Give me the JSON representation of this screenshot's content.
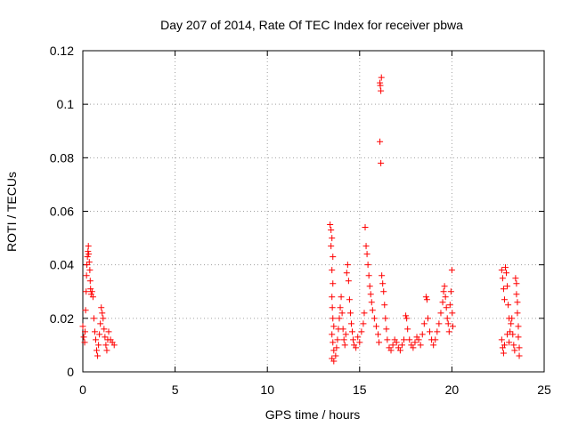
{
  "chart_data": {
    "type": "scatter",
    "title": "Day 207 of 2014, Rate Of TEC Index for receiver pbwa",
    "xlabel": "GPS time / hours",
    "ylabel": "ROTI / TECUs",
    "xlim": [
      0,
      25
    ],
    "ylim": [
      0,
      0.12
    ],
    "x_ticks": [
      0,
      5,
      10,
      15,
      20,
      25
    ],
    "x_tick_labels": [
      "0",
      "5",
      "10",
      "15",
      "20",
      "25"
    ],
    "y_ticks": [
      0,
      0.02,
      0.04,
      0.06,
      0.08,
      0.1,
      0.12
    ],
    "y_tick_labels": [
      "0",
      "0.02",
      "0.04",
      "0.06",
      "0.08",
      "0.1",
      "0.12"
    ],
    "grid": true,
    "marker": "+",
    "color": "#ff0000",
    "series": [
      {
        "name": "ROTI",
        "points": [
          [
            0.0,
            0.017
          ],
          [
            0.05,
            0.013
          ],
          [
            0.1,
            0.011
          ],
          [
            0.12,
            0.015
          ],
          [
            0.15,
            0.023
          ],
          [
            0.18,
            0.03
          ],
          [
            0.2,
            0.036
          ],
          [
            0.22,
            0.04
          ],
          [
            0.25,
            0.043
          ],
          [
            0.28,
            0.045
          ],
          [
            0.3,
            0.047
          ],
          [
            0.32,
            0.044
          ],
          [
            0.35,
            0.041
          ],
          [
            0.38,
            0.038
          ],
          [
            0.4,
            0.034
          ],
          [
            0.42,
            0.031
          ],
          [
            0.45,
            0.029
          ],
          [
            0.5,
            0.03
          ],
          [
            0.55,
            0.028
          ],
          [
            0.6,
            0.02
          ],
          [
            0.65,
            0.015
          ],
          [
            0.7,
            0.012
          ],
          [
            0.75,
            0.008
          ],
          [
            0.8,
            0.006
          ],
          [
            0.85,
            0.01
          ],
          [
            0.9,
            0.014
          ],
          [
            0.95,
            0.018
          ],
          [
            1.0,
            0.024
          ],
          [
            1.05,
            0.022
          ],
          [
            1.1,
            0.02
          ],
          [
            1.15,
            0.016
          ],
          [
            1.2,
            0.013
          ],
          [
            1.25,
            0.01
          ],
          [
            1.3,
            0.008
          ],
          [
            1.35,
            0.012
          ],
          [
            1.4,
            0.015
          ],
          [
            1.5,
            0.012
          ],
          [
            1.6,
            0.011
          ],
          [
            1.7,
            0.01
          ],
          [
            13.4,
            0.055
          ],
          [
            13.45,
            0.053
          ],
          [
            13.5,
            0.05
          ],
          [
            13.55,
            0.043
          ],
          [
            13.45,
            0.047
          ],
          [
            13.5,
            0.038
          ],
          [
            13.55,
            0.033
          ],
          [
            13.5,
            0.028
          ],
          [
            13.52,
            0.024
          ],
          [
            13.55,
            0.02
          ],
          [
            13.6,
            0.017
          ],
          [
            13.5,
            0.014
          ],
          [
            13.55,
            0.011
          ],
          [
            13.6,
            0.008
          ],
          [
            13.5,
            0.005
          ],
          [
            13.6,
            0.004
          ],
          [
            13.7,
            0.006
          ],
          [
            13.75,
            0.009
          ],
          [
            13.8,
            0.012
          ],
          [
            13.85,
            0.016
          ],
          [
            13.9,
            0.02
          ],
          [
            13.95,
            0.024
          ],
          [
            14.0,
            0.028
          ],
          [
            14.05,
            0.022
          ],
          [
            14.1,
            0.016
          ],
          [
            14.15,
            0.012
          ],
          [
            14.2,
            0.01
          ],
          [
            14.25,
            0.014
          ],
          [
            14.3,
            0.037
          ],
          [
            14.35,
            0.04
          ],
          [
            14.4,
            0.034
          ],
          [
            14.45,
            0.027
          ],
          [
            14.5,
            0.022
          ],
          [
            14.55,
            0.018
          ],
          [
            14.6,
            0.015
          ],
          [
            14.65,
            0.012
          ],
          [
            14.7,
            0.01
          ],
          [
            14.8,
            0.009
          ],
          [
            14.9,
            0.013
          ],
          [
            15.0,
            0.011
          ],
          [
            15.1,
            0.015
          ],
          [
            15.2,
            0.018
          ],
          [
            15.25,
            0.022
          ],
          [
            15.3,
            0.054
          ],
          [
            15.35,
            0.047
          ],
          [
            15.4,
            0.044
          ],
          [
            15.45,
            0.04
          ],
          [
            15.5,
            0.036
          ],
          [
            15.55,
            0.032
          ],
          [
            15.6,
            0.029
          ],
          [
            15.65,
            0.026
          ],
          [
            15.7,
            0.023
          ],
          [
            15.8,
            0.02
          ],
          [
            15.9,
            0.017
          ],
          [
            16.0,
            0.014
          ],
          [
            16.05,
            0.011
          ],
          [
            16.1,
            0.108
          ],
          [
            16.12,
            0.107
          ],
          [
            16.15,
            0.105
          ],
          [
            16.18,
            0.11
          ],
          [
            16.1,
            0.086
          ],
          [
            16.15,
            0.078
          ],
          [
            16.2,
            0.036
          ],
          [
            16.25,
            0.033
          ],
          [
            16.3,
            0.03
          ],
          [
            16.35,
            0.025
          ],
          [
            16.4,
            0.02
          ],
          [
            16.45,
            0.016
          ],
          [
            16.5,
            0.012
          ],
          [
            16.6,
            0.009
          ],
          [
            16.7,
            0.008
          ],
          [
            16.8,
            0.01
          ],
          [
            16.9,
            0.012
          ],
          [
            17.0,
            0.011
          ],
          [
            17.1,
            0.009
          ],
          [
            17.2,
            0.008
          ],
          [
            17.3,
            0.01
          ],
          [
            17.4,
            0.012
          ],
          [
            17.5,
            0.021
          ],
          [
            17.55,
            0.02
          ],
          [
            17.6,
            0.016
          ],
          [
            17.7,
            0.012
          ],
          [
            17.8,
            0.01
          ],
          [
            17.9,
            0.009
          ],
          [
            18.0,
            0.011
          ],
          [
            18.1,
            0.013
          ],
          [
            18.2,
            0.012
          ],
          [
            18.3,
            0.01
          ],
          [
            18.4,
            0.014
          ],
          [
            18.5,
            0.018
          ],
          [
            18.6,
            0.028
          ],
          [
            18.65,
            0.027
          ],
          [
            18.7,
            0.02
          ],
          [
            18.8,
            0.015
          ],
          [
            18.9,
            0.012
          ],
          [
            19.0,
            0.01
          ],
          [
            19.1,
            0.012
          ],
          [
            19.2,
            0.015
          ],
          [
            19.3,
            0.018
          ],
          [
            19.4,
            0.022
          ],
          [
            19.5,
            0.026
          ],
          [
            19.55,
            0.03
          ],
          [
            19.6,
            0.032
          ],
          [
            19.65,
            0.028
          ],
          [
            19.7,
            0.024
          ],
          [
            19.75,
            0.02
          ],
          [
            19.8,
            0.018
          ],
          [
            19.85,
            0.015
          ],
          [
            19.9,
            0.025
          ],
          [
            19.95,
            0.03
          ],
          [
            20.0,
            0.038
          ],
          [
            20.02,
            0.022
          ],
          [
            20.05,
            0.017
          ],
          [
            22.7,
            0.038
          ],
          [
            22.75,
            0.035
          ],
          [
            22.8,
            0.031
          ],
          [
            22.85,
            0.027
          ],
          [
            22.9,
            0.039
          ],
          [
            22.95,
            0.037
          ],
          [
            23.0,
            0.032
          ],
          [
            23.05,
            0.025
          ],
          [
            23.1,
            0.02
          ],
          [
            23.15,
            0.015
          ],
          [
            22.7,
            0.012
          ],
          [
            22.75,
            0.009
          ],
          [
            22.8,
            0.007
          ],
          [
            22.85,
            0.01
          ],
          [
            23.0,
            0.014
          ],
          [
            23.1,
            0.011
          ],
          [
            23.2,
            0.018
          ],
          [
            23.25,
            0.02
          ],
          [
            23.3,
            0.014
          ],
          [
            23.35,
            0.01
          ],
          [
            23.4,
            0.008
          ],
          [
            23.45,
            0.035
          ],
          [
            23.5,
            0.033
          ],
          [
            23.5,
            0.029
          ],
          [
            23.55,
            0.026
          ],
          [
            23.55,
            0.022
          ],
          [
            23.6,
            0.017
          ],
          [
            23.6,
            0.013
          ],
          [
            23.65,
            0.009
          ],
          [
            23.65,
            0.006
          ]
        ]
      }
    ]
  }
}
